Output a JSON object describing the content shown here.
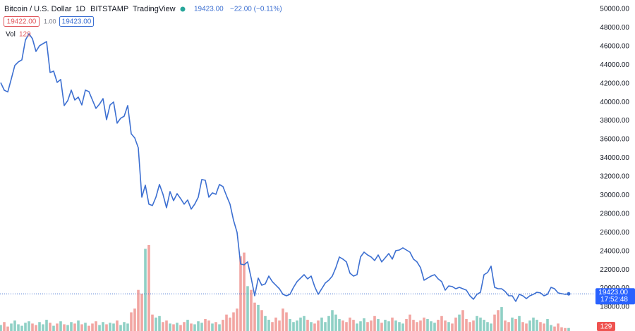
{
  "chart_data": {
    "type": "line",
    "symbol": "Bitcoin / U.S. Dollar",
    "interval": "1D",
    "exchange": "BITSTAMP",
    "source": "TradingView",
    "last_price": "19423.00",
    "change": "−22.00 (−0.11%)",
    "bid": "19422.00",
    "spread": "1.00",
    "ask": "19423.00",
    "volume_title": "Vol",
    "countdown": "17:52:48",
    "line_color": "#3c6fd1",
    "up_color": "#8fd0c5",
    "down_color": "#f2a5a1",
    "ylim": [
      15430,
      50980
    ],
    "yticks": [
      {
        "value": 18000,
        "label": "18000.00"
      },
      {
        "value": 20000,
        "label": "20000.00"
      },
      {
        "value": 22000,
        "label": "22000.00"
      },
      {
        "value": 24000,
        "label": "24000.00"
      },
      {
        "value": 26000,
        "label": "26000.00"
      },
      {
        "value": 28000,
        "label": "28000.00"
      },
      {
        "value": 30000,
        "label": "30000.00"
      },
      {
        "value": 32000,
        "label": "32000.00"
      },
      {
        "value": 34000,
        "label": "34000.00"
      },
      {
        "value": 36000,
        "label": "36000.00"
      },
      {
        "value": 38000,
        "label": "38000.00"
      },
      {
        "value": 40000,
        "label": "40000.00"
      },
      {
        "value": 42000,
        "label": "42000.00"
      },
      {
        "value": 44000,
        "label": "44000.00"
      },
      {
        "value": 46000,
        "label": "46000.00"
      },
      {
        "value": 48000,
        "label": "48000.00"
      },
      {
        "value": 50000,
        "label": "50000.00"
      }
    ],
    "values": [
      42100,
      41300,
      41100,
      42500,
      43950,
      44330,
      44550,
      46670,
      47350,
      46820,
      45460,
      46070,
      46290,
      46520,
      43190,
      43340,
      42130,
      42440,
      39640,
      40170,
      41300,
      40240,
      40550,
      39710,
      41300,
      41150,
      40240,
      39340,
      39790,
      40390,
      38120,
      39710,
      40020,
      37750,
      38280,
      38500,
      39640,
      36610,
      36160,
      35100,
      29800,
      31090,
      29050,
      28900,
      29800,
      31170,
      30110,
      28670,
      30410,
      29430,
      30180,
      29650,
      29050,
      29500,
      28520,
      29050,
      29800,
      31700,
      31620,
      29800,
      30260,
      30110,
      31170,
      30940,
      29960,
      29050,
      27310,
      26020,
      22620,
      22540,
      22850,
      21110,
      19210,
      21110,
      20350,
      20500,
      21330,
      20730,
      20350,
      19970,
      19370,
      19210,
      19370,
      20120,
      20730,
      21110,
      21480,
      21030,
      21330,
      20200,
      19370,
      19970,
      20580,
      20880,
      21330,
      22240,
      23380,
      23150,
      22850,
      21640,
      21330,
      21480,
      23380,
      23900,
      23600,
      23380,
      23000,
      23600,
      22850,
      23300,
      23750,
      23150,
      24060,
      24130,
      24360,
      24130,
      23900,
      23150,
      22850,
      22240,
      20880,
      21110,
      21330,
      21480,
      21030,
      20730,
      19820,
      20270,
      20200,
      19970,
      20120,
      19970,
      19820,
      19210,
      18840,
      19370,
      19590,
      21480,
      21710,
      22390,
      20120,
      19970,
      19970,
      19670,
      19210,
      19210,
      18610,
      19370,
      19210,
      18910,
      19210,
      19370,
      19590,
      19520,
      19210,
      19370,
      20120,
      19970,
      19520,
      19440,
      19370,
      19423
    ],
    "volume": [
      256,
      384,
      192,
      320,
      448,
      288,
      224,
      352,
      416,
      320,
      256,
      384,
      288,
      480,
      352,
      224,
      320,
      416,
      288,
      256,
      384,
      320,
      448,
      288,
      352,
      224,
      320,
      416,
      256,
      384,
      288,
      352,
      320,
      448,
      256,
      384,
      320,
      800,
      960,
      1760,
      1600,
      3520,
      3680,
      704,
      576,
      640,
      384,
      448,
      320,
      288,
      352,
      256,
      384,
      480,
      320,
      288,
      416,
      352,
      512,
      448,
      320,
      384,
      288,
      480,
      704,
      576,
      800,
      960,
      3200,
      3360,
      1920,
      1760,
      1216,
      1120,
      896,
      640,
      480,
      384,
      576,
      448,
      960,
      800,
      512,
      384,
      448,
      576,
      640,
      480,
      384,
      320,
      448,
      576,
      384,
      640,
      896,
      704,
      512,
      448,
      384,
      576,
      480,
      320,
      416,
      544,
      384,
      448,
      640,
      512,
      352,
      480,
      416,
      576,
      448,
      384,
      320,
      512,
      704,
      480,
      384,
      448,
      576,
      512,
      416,
      352,
      480,
      640,
      448,
      384,
      320,
      576,
      704,
      896,
      512,
      384,
      448,
      640,
      576,
      480,
      384,
      320,
      704,
      896,
      1024,
      448,
      384,
      576,
      512,
      640,
      384,
      320,
      448,
      576,
      480,
      384,
      320,
      512,
      256,
      192,
      320,
      160,
      128,
      129
    ]
  }
}
